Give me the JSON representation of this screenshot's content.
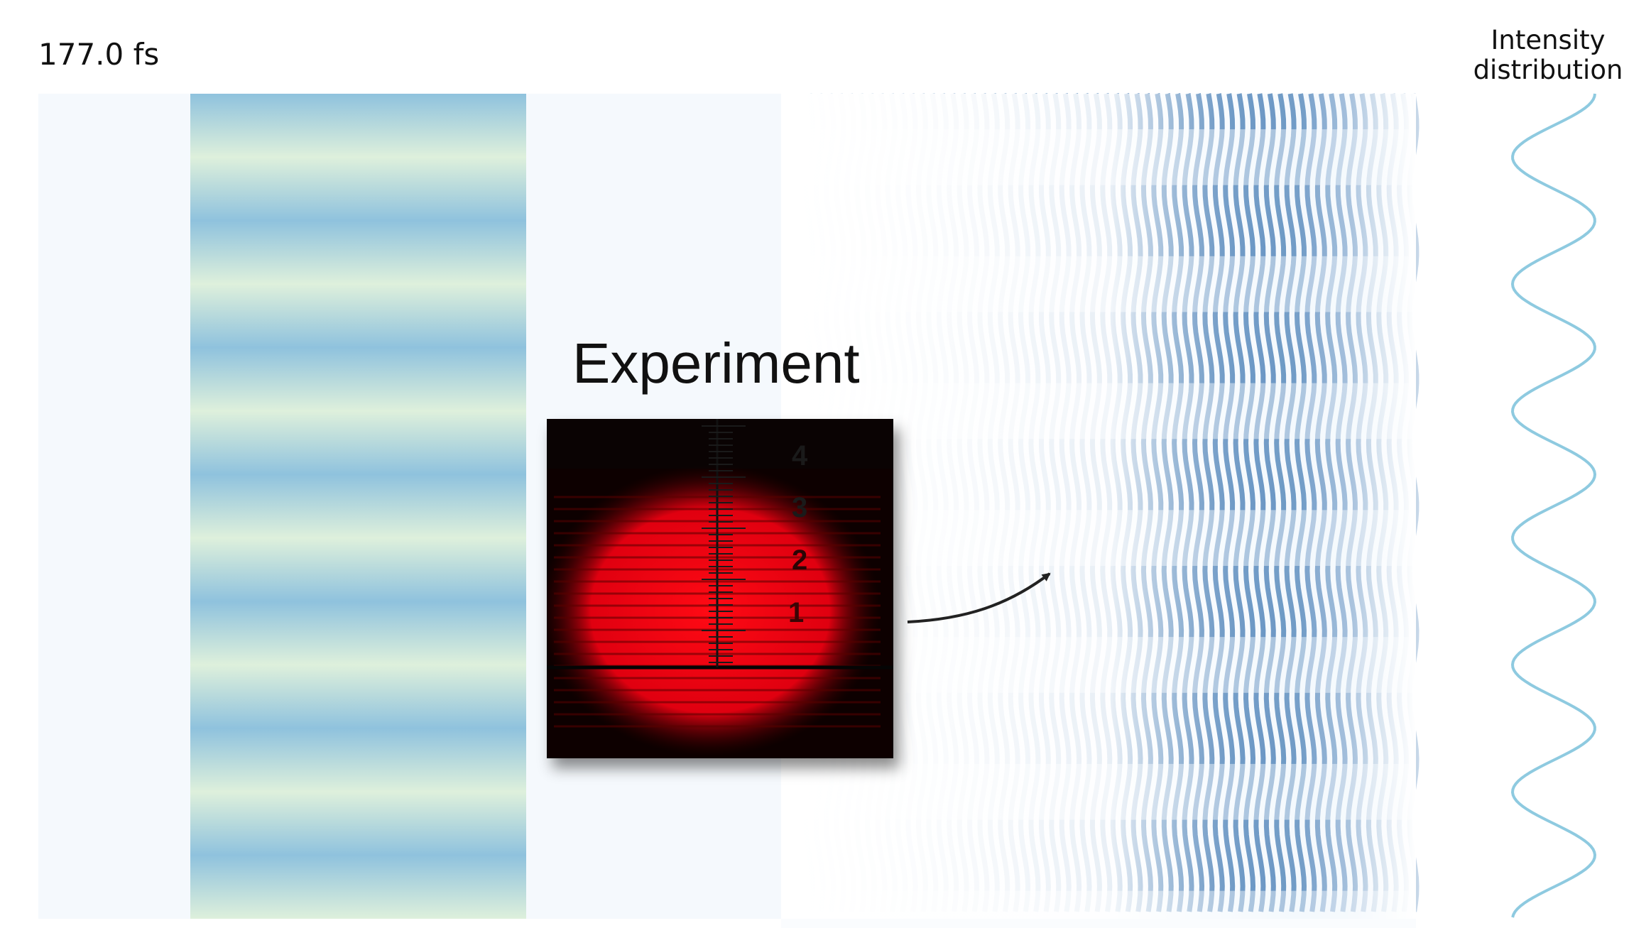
{
  "header": {
    "time_label": "177.0 fs",
    "intensity_title_line1": "Intensity",
    "intensity_title_line2": "distribution"
  },
  "inset": {
    "title": "Experiment",
    "scale_ticks": [
      "4",
      "3",
      "2",
      "1"
    ]
  },
  "colors": {
    "background_field": "#f5f9fd",
    "grating_blue": "#8fc2dd",
    "grating_green": "#def0dc",
    "fringe_dark": "#08519c",
    "intensity_curve": "#8ecae0",
    "laser_red": "#e00010",
    "arrow": "#222222"
  },
  "fringes": {
    "horizontal_periods": 7,
    "vertical_fringe_count": 60,
    "intensity_peaks": 7
  }
}
